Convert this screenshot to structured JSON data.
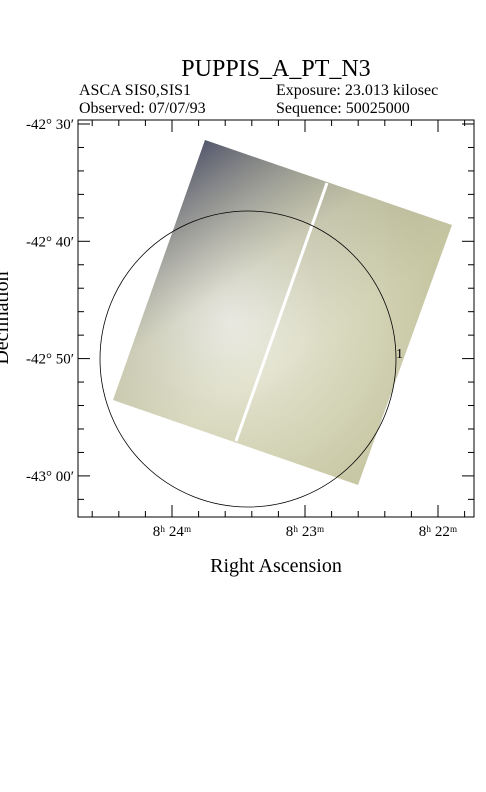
{
  "header": {
    "title": "PUPPIS_A_PT_N3",
    "instrument": "ASCA SIS0,SIS1",
    "exposure": "Exposure: 23.013 kilosec",
    "observed": "Observed: 07/07/93",
    "sequence": "Sequence: 50025000"
  },
  "axes": {
    "x_label": "Right Ascension",
    "y_label": "Declination",
    "x_ticks": [
      "8ʰ 24ᵐ",
      "8ʰ 23ᵐ",
      "8ʰ 22ᵐ"
    ],
    "y_ticks": [
      "-42° 30′",
      "-42° 40′",
      "-42° 50′",
      "-43° 00′"
    ]
  },
  "marker": "1"
}
